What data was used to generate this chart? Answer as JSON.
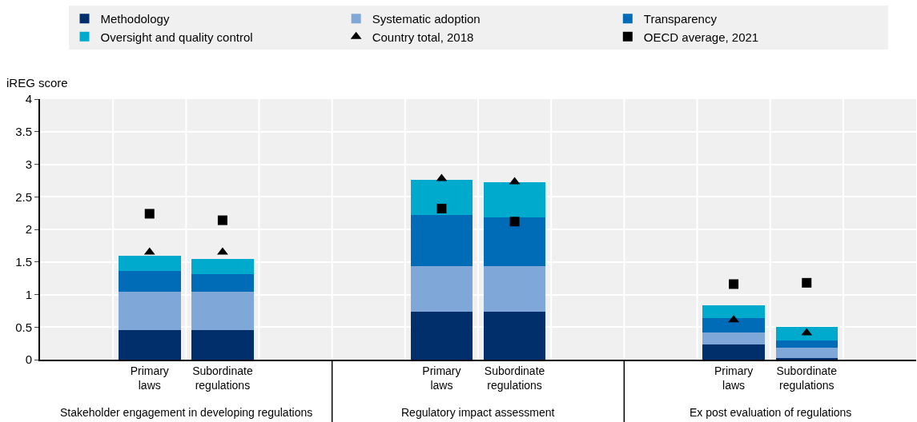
{
  "chart_data": {
    "type": "bar",
    "stacked": true,
    "ylabel": "iREG score",
    "categories": [
      null,
      "Primary laws",
      "Subordinate regulations",
      null,
      null,
      "Primary laws",
      "Subordinate regulations",
      null,
      null,
      "Primary laws",
      "Subordinate regulations",
      null
    ],
    "series": [
      {
        "name": "Methodology",
        "color": "#002f6c",
        "values": [
          null,
          0.45,
          0.45,
          null,
          null,
          0.74,
          0.74,
          null,
          null,
          0.23,
          0.03,
          null
        ]
      },
      {
        "name": "Systematic adoption",
        "color": "#7fa8d9",
        "values": [
          null,
          0.59,
          0.59,
          null,
          null,
          0.69,
          0.69,
          null,
          null,
          0.19,
          0.15,
          null
        ]
      },
      {
        "name": "Transparency",
        "color": "#006bb6",
        "values": [
          null,
          0.32,
          0.27,
          null,
          null,
          0.79,
          0.76,
          null,
          null,
          0.22,
          0.12,
          null
        ]
      },
      {
        "name": "Oversight and quality control",
        "color": "#00aacc",
        "values": [
          null,
          0.24,
          0.24,
          null,
          null,
          0.54,
          0.54,
          null,
          null,
          0.2,
          0.2,
          null
        ]
      },
      {
        "name": "Country total, 2018",
        "type": "scatter",
        "marker": "triangle",
        "color": "#000000",
        "values": [
          null,
          1.65,
          1.65,
          null,
          null,
          2.78,
          2.73,
          null,
          null,
          0.61,
          0.41,
          null
        ]
      },
      {
        "name": "OECD average, 2021",
        "type": "scatter",
        "marker": "square",
        "color": "#000000",
        "values": [
          null,
          2.24,
          2.14,
          null,
          null,
          2.32,
          2.12,
          null,
          null,
          1.16,
          1.18,
          null
        ]
      }
    ],
    "annotations": [
      "Stakeholder engagement in developing regulations",
      "Regulatory impact assessment",
      "Ex post evaluation of regulations"
    ],
    "ylim": [
      0,
      4
    ],
    "yticks": [
      0,
      0.5,
      1,
      1.5,
      2,
      2.5,
      3,
      3.5,
      4
    ],
    "grid": true,
    "legend": "top"
  }
}
